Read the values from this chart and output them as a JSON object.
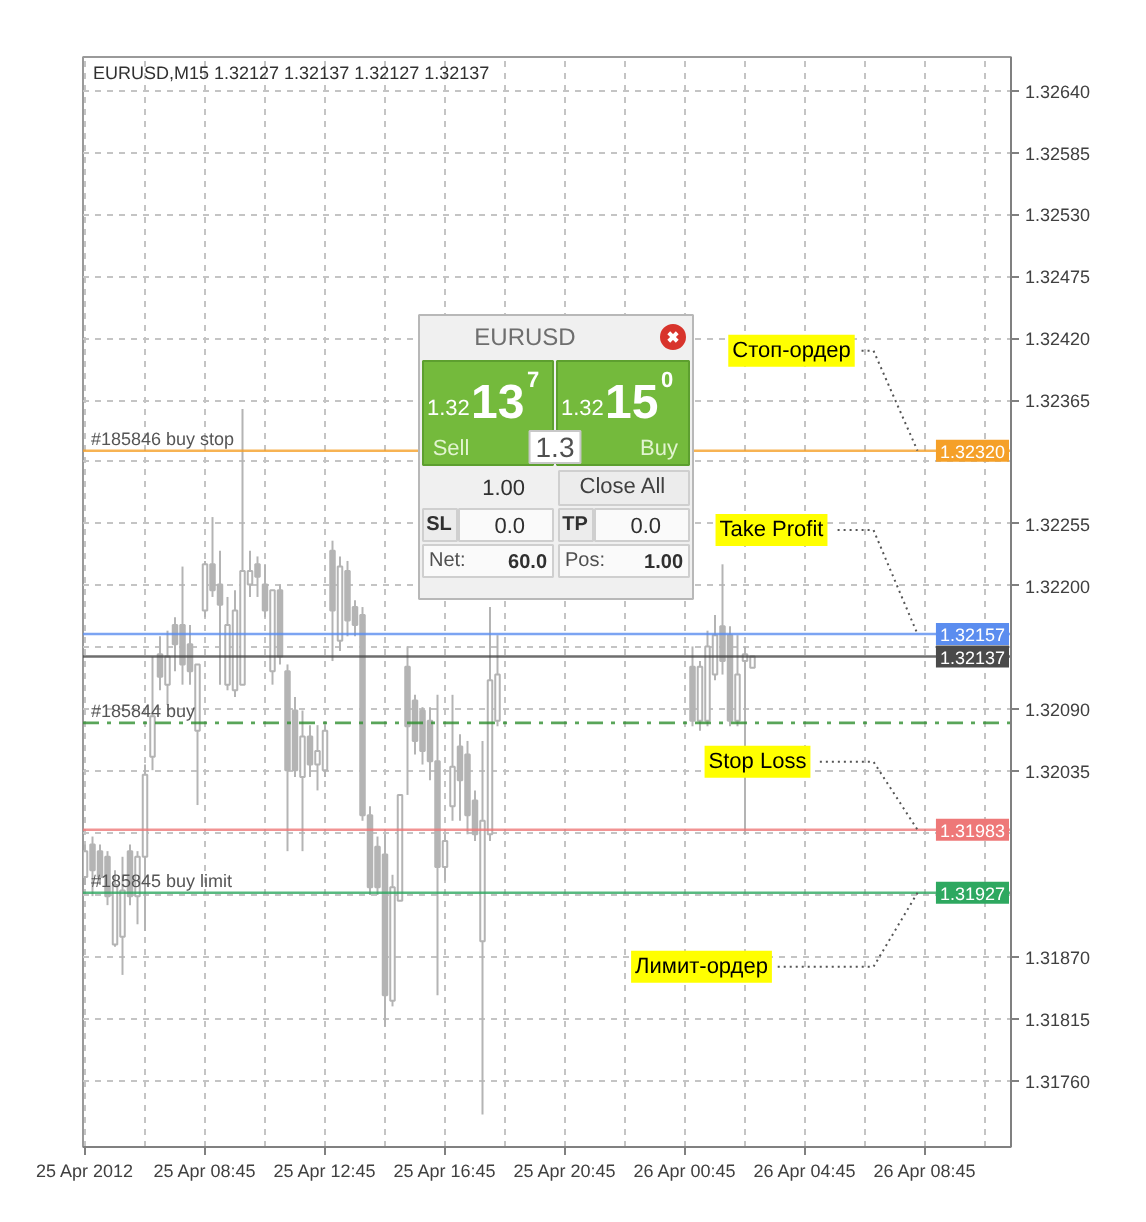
{
  "chart_data": {
    "type": "candlestick",
    "title": "EURUSD,M15  1.32127 1.32137 1.32127 1.32137",
    "color": "#b4b4b4",
    "x": [
      "2012-04-25T04:45",
      "2012-04-25T05:00",
      "2012-04-25T05:15",
      "2012-04-25T05:30",
      "2012-04-25T05:45",
      "2012-04-25T06:00",
      "2012-04-25T06:15",
      "2012-04-25T06:30",
      "2012-04-25T06:45",
      "2012-04-25T07:00",
      "2012-04-25T07:15",
      "2012-04-25T07:30",
      "2012-04-25T07:45",
      "2012-04-25T08:00",
      "2012-04-25T08:15",
      "2012-04-25T08:30",
      "2012-04-25T08:45",
      "2012-04-25T09:00",
      "2012-04-25T09:15",
      "2012-04-25T09:30",
      "2012-04-25T09:45",
      "2012-04-25T10:00",
      "2012-04-25T10:15",
      "2012-04-25T10:30",
      "2012-04-25T10:45",
      "2012-04-25T11:00",
      "2012-04-25T11:15",
      "2012-04-25T11:30",
      "2012-04-25T11:45",
      "2012-04-25T12:00",
      "2012-04-25T12:15",
      "2012-04-25T12:30",
      "2012-04-25T12:45",
      "2012-04-25T13:00",
      "2012-04-25T13:15",
      "2012-04-25T13:30",
      "2012-04-25T13:45",
      "2012-04-25T14:00",
      "2012-04-25T14:15",
      "2012-04-25T14:30",
      "2012-04-25T14:45",
      "2012-04-25T15:00",
      "2012-04-25T15:15",
      "2012-04-25T15:30",
      "2012-04-25T15:45",
      "2012-04-25T16:00",
      "2012-04-25T16:15",
      "2012-04-25T16:30",
      "2012-04-25T16:45",
      "2012-04-25T17:00",
      "2012-04-25T17:15",
      "2012-04-25T17:30",
      "2012-04-25T17:45",
      "2012-04-25T18:00",
      "2012-04-25T18:15",
      "2012-04-25T18:30",
      "2012-04-26T01:00",
      "2012-04-26T01:15",
      "2012-04-26T01:30",
      "2012-04-26T01:45",
      "2012-04-26T02:00",
      "2012-04-26T02:15",
      "2012-04-26T02:30",
      "2012-04-26T02:45",
      "2012-04-26T03:00"
    ],
    "ohlc": [
      [
        1.31941,
        1.3197,
        1.31934,
        1.31964
      ],
      [
        1.3197,
        1.31977,
        1.31924,
        1.31947
      ],
      [
        1.31964,
        1.3197,
        1.31934,
        1.31941
      ],
      [
        1.31959,
        1.31964,
        1.31916,
        1.31924
      ],
      [
        1.31881,
        1.31947,
        1.31879,
        1.31934
      ],
      [
        1.31888,
        1.31959,
        1.31854,
        1.31929
      ],
      [
        1.31964,
        1.3197,
        1.31916,
        1.31924
      ],
      [
        1.31924,
        1.31964,
        1.31899,
        1.31959
      ],
      [
        1.31959,
        1.32041,
        1.31893,
        1.32032
      ],
      [
        1.32048,
        1.32137,
        1.32036,
        1.32084
      ],
      [
        1.32139,
        1.32155,
        1.32107,
        1.32119
      ],
      [
        1.32112,
        1.3216,
        1.32094,
        1.32137
      ],
      [
        1.32165,
        1.32172,
        1.32124,
        1.32148
      ],
      [
        1.32165,
        1.32217,
        1.32112,
        1.3213
      ],
      [
        1.32148,
        1.32165,
        1.32112,
        1.32124
      ],
      [
        1.32071,
        1.3213,
        1.32005,
        1.3213
      ],
      [
        1.32178,
        1.32222,
        1.32172,
        1.32219
      ],
      [
        1.32219,
        1.32261,
        1.3219,
        1.32196
      ],
      [
        1.32201,
        1.32231,
        1.32112,
        1.32183
      ],
      [
        1.32112,
        1.3219,
        1.32107,
        1.32165
      ],
      [
        1.32107,
        1.32196,
        1.32101,
        1.32178
      ],
      [
        1.32112,
        1.32357,
        1.32112,
        1.32213
      ],
      [
        1.32201,
        1.32231,
        1.3219,
        1.32213
      ],
      [
        1.32219,
        1.32226,
        1.3219,
        1.32208
      ],
      [
        1.32201,
        1.32219,
        1.32172,
        1.32178
      ],
      [
        1.32124,
        1.32196,
        1.32112,
        1.32196
      ],
      [
        1.32196,
        1.32201,
        1.3213,
        1.32137
      ],
      [
        1.32124,
        1.3213,
        1.31964,
        1.32036
      ],
      [
        1.32089,
        1.32101,
        1.3203,
        1.32036
      ],
      [
        1.3203,
        1.32089,
        1.31964,
        1.32066
      ],
      [
        1.32066,
        1.32076,
        1.3203,
        1.32041
      ],
      [
        1.32041,
        1.32076,
        1.32018,
        1.32053
      ],
      [
        1.32036,
        1.32076,
        1.3203,
        1.32071
      ],
      [
        1.32231,
        1.3224,
        1.32133,
        1.32178
      ],
      [
        1.32151,
        1.32226,
        1.32142,
        1.32217
      ],
      [
        1.32213,
        1.32222,
        1.32155,
        1.32169
      ],
      [
        1.32181,
        1.32187,
        1.32155,
        1.32165
      ],
      [
        1.32174,
        1.32181,
        1.31991,
        1.31996
      ],
      [
        1.31996,
        1.32004,
        1.31925,
        1.31932
      ],
      [
        1.31968,
        1.31977,
        1.31925,
        1.31932
      ],
      [
        1.31961,
        1.31979,
        1.31808,
        1.31836
      ],
      [
        1.31831,
        1.31943,
        1.31826,
        1.31932
      ],
      [
        1.3192,
        1.32014,
        1.3192,
        1.32014
      ],
      [
        1.32128,
        1.32146,
        1.32014,
        1.32075
      ],
      [
        1.32098,
        1.32103,
        1.3205,
        1.32062
      ],
      [
        1.32089,
        1.32092,
        1.32041,
        1.32053
      ],
      [
        1.3208,
        1.32092,
        1.32027,
        1.32044
      ],
      [
        1.32044,
        1.32103,
        1.31836,
        1.3195
      ],
      [
        1.3195,
        1.31979,
        1.31938,
        1.31973
      ],
      [
        1.32004,
        1.32103,
        1.31991,
        1.32039
      ],
      [
        1.32057,
        1.32068,
        1.31991,
        1.32027
      ],
      [
        1.3205,
        1.32062,
        1.31979,
        1.31996
      ],
      [
        1.32009,
        1.32018,
        1.31973,
        1.31979
      ],
      [
        1.31884,
        1.32062,
        1.3173,
        1.31991
      ],
      [
        1.31979,
        1.32181,
        1.31973,
        1.32116
      ],
      [
        1.3208,
        1.32156,
        1.32075,
        1.32121
      ],
      [
        1.32128,
        1.32146,
        1.32075,
        1.3208
      ],
      [
        1.3208,
        1.32133,
        1.32071,
        1.32128
      ],
      [
        1.3208,
        1.3216,
        1.32075,
        1.32146
      ],
      [
        1.32121,
        1.32174,
        1.32116,
        1.32156
      ],
      [
        1.32164,
        1.32219,
        1.32121,
        1.32133
      ],
      [
        1.32156,
        1.32164,
        1.32075,
        1.3208
      ],
      [
        1.3208,
        1.32156,
        1.32075,
        1.32121
      ],
      [
        1.32133,
        1.32146,
        1.31979,
        1.32139
      ],
      [
        1.32127,
        1.32137,
        1.32127,
        1.32137
      ]
    ],
    "xlim": [
      "2012-04-25T04:41",
      "2012-04-26T11:37"
    ],
    "xticks": [
      {
        "value": "2012-04-25T04:45",
        "label": "25 Apr 2012"
      },
      {
        "value": "2012-04-25T06:45",
        "label": null
      },
      {
        "value": "2012-04-25T08:45",
        "label": "25 Apr 08:45"
      },
      {
        "value": "2012-04-25T10:45",
        "label": null
      },
      {
        "value": "2012-04-25T12:45",
        "label": "25 Apr 12:45"
      },
      {
        "value": "2012-04-25T14:45",
        "label": null
      },
      {
        "value": "2012-04-25T16:45",
        "label": "25 Apr 16:45"
      },
      {
        "value": "2012-04-25T18:45",
        "label": null
      },
      {
        "value": "2012-04-25T20:45",
        "label": "25 Apr 20:45"
      },
      {
        "value": "2012-04-25T22:45",
        "label": null
      },
      {
        "value": "2012-04-26T00:45",
        "label": "26 Apr 00:45"
      },
      {
        "value": "2012-04-26T02:45",
        "label": null
      },
      {
        "value": "2012-04-26T04:45",
        "label": "26 Apr 04:45"
      },
      {
        "value": "2012-04-26T06:45",
        "label": null
      },
      {
        "value": "2012-04-26T08:45",
        "label": "26 Apr 08:45"
      },
      {
        "value": "2012-04-26T10:45",
        "label": null
      }
    ],
    "ylim": [
      1.31701,
      1.3267
    ],
    "yticks": [
      {
        "value": 1.3264,
        "label": "1.32640"
      },
      1.32585,
      {
        "value": 1.3253,
        "label": "1.32530"
      },
      1.32475,
      {
        "value": 1.3242,
        "label": "1.32420"
      },
      1.32365,
      {
        "value": 1.3231,
        "label": null
      },
      1.32255,
      {
        "value": 1.322,
        "label": "1.32200"
      },
      {
        "value": 1.32145,
        "label": null
      },
      {
        "value": 1.3209,
        "label": "1.32090"
      },
      1.32035,
      {
        "value": 1.3198,
        "label": null
      },
      {
        "value": 1.31925,
        "label": null
      },
      {
        "value": 1.3187,
        "label": "1.31870"
      },
      1.31815,
      {
        "value": 1.3176,
        "label": "1.31760"
      }
    ],
    "grid": true,
    "ref_lines": [
      {
        "axis": "y",
        "value": 1.3232,
        "label": "1.32320",
        "color": "#f5a028"
      },
      {
        "axis": "y",
        "value": 1.32157,
        "label": "1.32157",
        "color": "#5b8def"
      },
      {
        "axis": "y",
        "value": 1.32137,
        "label": "1.32137",
        "color": "#4a4a4a"
      },
      {
        "axis": "y",
        "value": 1.32078,
        "label": null,
        "color": "#2f8f2f",
        "line_style": "dashdot"
      },
      {
        "axis": "y",
        "value": 1.31983,
        "label": "1.31983",
        "color": "#ee7878"
      },
      {
        "axis": "y",
        "value": 1.31927,
        "label": "1.31927",
        "color": "#2ea860"
      }
    ],
    "annotations": [
      {
        "text": "#185846 buy stop",
        "x": "2012-04-25T04:45",
        "y": 1.3232
      },
      {
        "text": "#185844 buy",
        "x": "2012-04-25T04:45",
        "y": 1.32078
      },
      {
        "text": "#185845 buy limit",
        "x": "2012-04-25T04:45",
        "y": 1.31927
      },
      {
        "text": "Стоп-ордер",
        "x": "2012-04-26T08:30",
        "y": 1.3232
      },
      {
        "text": "Take Profit",
        "x": "2012-04-26T08:30",
        "y": 1.32157
      },
      {
        "text": "Stop Loss",
        "x": "2012-04-26T08:30",
        "y": 1.31983
      },
      {
        "text": "Лимит-ордер",
        "x": "2012-04-26T08:30",
        "y": 1.31927
      },
      "EURUSD",
      "1.32",
      "13",
      "7",
      "Sell",
      "1.32",
      "15",
      "0",
      "Buy",
      "1.3",
      "1.00",
      "Close All",
      "SL",
      "0.0",
      "TP",
      "0.0",
      "Net:",
      "60.0",
      "Pos:",
      "1.00"
    ]
  }
}
